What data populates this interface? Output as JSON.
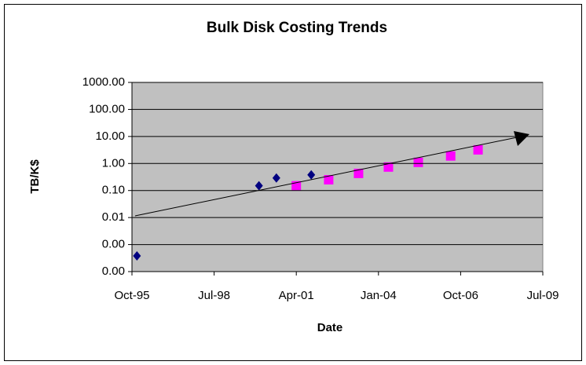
{
  "chart_data": {
    "type": "scatter",
    "title": "Bulk Disk Costing Trends",
    "x_label": "Date",
    "y_label": "TB/K$",
    "log_y": true,
    "grid": true,
    "background": "#c0c0c0",
    "xlim": [
      "1995-10",
      "2009-07"
    ],
    "xticks": [
      {
        "value": "1995-10",
        "label": "Oct-95"
      },
      {
        "value": "1998-07",
        "label": "Jul-98"
      },
      {
        "value": "2001-04",
        "label": "Apr-01"
      },
      {
        "value": "2004-01",
        "label": "Jan-04"
      },
      {
        "value": "2006-10",
        "label": "Oct-06"
      },
      {
        "value": "2009-07",
        "label": "Jul-09"
      }
    ],
    "ylim": [
      0.0001,
      1000
    ],
    "yticks": [
      {
        "value": 1000,
        "label": "1000.00"
      },
      {
        "value": 100,
        "label": "100.00"
      },
      {
        "value": 10,
        "label": "10.00"
      },
      {
        "value": 1,
        "label": "1.00"
      },
      {
        "value": 0.1,
        "label": "0.10"
      },
      {
        "value": 0.01,
        "label": "0.01"
      },
      {
        "value": 0.001,
        "label": "0.00"
      },
      {
        "value": 0.0001,
        "label": "0.00"
      }
    ],
    "series": [
      {
        "color": "#000080",
        "marker": "diamond",
        "x": [
          "1995-12",
          "2000-01",
          "2000-08",
          "2001-10"
        ],
        "values": [
          0.00038,
          0.15,
          0.29,
          0.38
        ]
      },
      {
        "color": "#ff00ff",
        "marker": "square",
        "x": [
          "2001-04",
          "2002-05",
          "2003-05",
          "2004-05",
          "2005-05",
          "2006-06",
          "2007-05"
        ],
        "values": [
          0.15,
          0.25,
          0.43,
          0.74,
          1.1,
          1.9,
          3.2
        ]
      }
    ]
  }
}
